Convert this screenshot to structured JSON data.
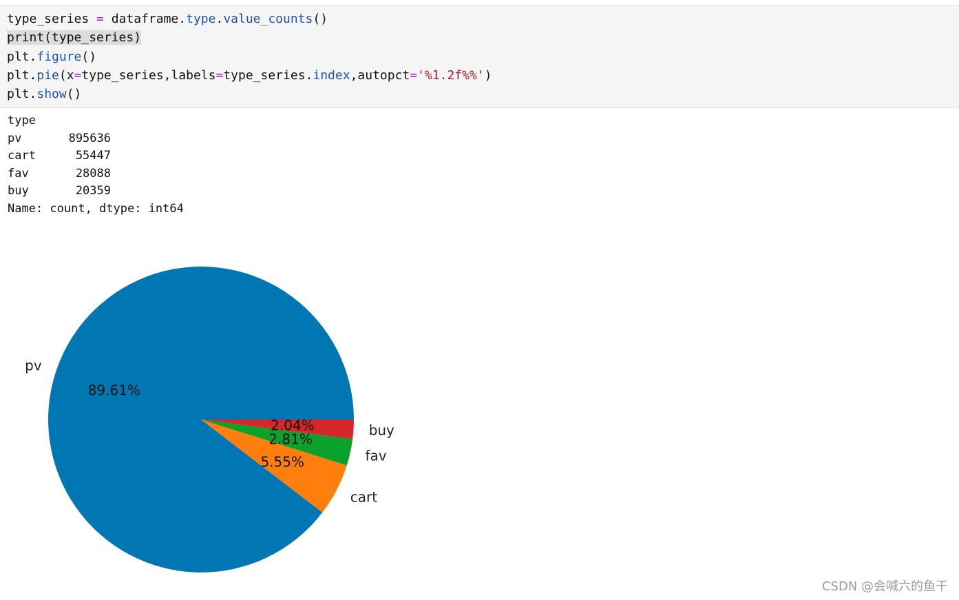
{
  "code_cell": {
    "lines": [
      [
        {
          "t": "type_series "
        },
        {
          "t": "=",
          "c": "op"
        },
        {
          "t": " dataframe."
        },
        {
          "t": "type",
          "c": "attr"
        },
        {
          "t": "."
        },
        {
          "t": "value_counts",
          "c": "attr"
        },
        {
          "t": "()"
        }
      ],
      [
        {
          "t": "print(type_series)",
          "c": "hl"
        }
      ],
      [
        {
          "t": "plt."
        },
        {
          "t": "figure",
          "c": "attr"
        },
        {
          "t": "()"
        }
      ],
      [
        {
          "t": "plt."
        },
        {
          "t": "pie",
          "c": "attr"
        },
        {
          "t": "(x"
        },
        {
          "t": "=",
          "c": "op"
        },
        {
          "t": "type_series,labels"
        },
        {
          "t": "=",
          "c": "op"
        },
        {
          "t": "type_series."
        },
        {
          "t": "index",
          "c": "attr"
        },
        {
          "t": ",autopct"
        },
        {
          "t": "=",
          "c": "op"
        },
        {
          "t": "'%1.2f%%'",
          "c": "str"
        },
        {
          "t": ")"
        }
      ],
      [
        {
          "t": "plt."
        },
        {
          "t": "show",
          "c": "attr"
        },
        {
          "t": "()"
        }
      ]
    ]
  },
  "output": {
    "header": "type",
    "rows": [
      {
        "key": "pv",
        "value": "895636"
      },
      {
        "key": "cart",
        "value": "55447"
      },
      {
        "key": "fav",
        "value": "28088"
      },
      {
        "key": "buy",
        "value": "20359"
      }
    ],
    "footer": "Name: count, dtype: int64"
  },
  "chart_data": {
    "type": "pie",
    "slices": [
      {
        "label": "pv",
        "value": 895636,
        "pct_label": "89.61%",
        "color": "#0077b3"
      },
      {
        "label": "cart",
        "value": 55447,
        "pct_label": "5.55%",
        "color": "#ff7f0e"
      },
      {
        "label": "fav",
        "value": 28088,
        "pct_label": "2.81%",
        "color": "#0ca02c"
      },
      {
        "label": "buy",
        "value": 20359,
        "pct_label": "2.04%",
        "color": "#d62728"
      }
    ],
    "start_angle_deg": 0,
    "direction": "counterclockwise",
    "legend": "none"
  },
  "watermark": "CSDN @会喊六的鱼干"
}
